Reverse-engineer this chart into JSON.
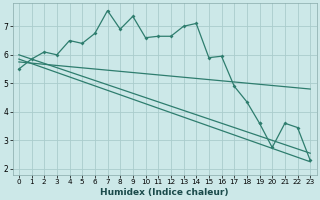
{
  "xlabel": "Humidex (Indice chaleur)",
  "ylabel": "",
  "bg_color": "#cce8e8",
  "grid_color": "#aacccc",
  "line_color": "#2e7d6e",
  "xlim": [
    -0.5,
    23.5
  ],
  "ylim": [
    1.8,
    7.8
  ],
  "yticks": [
    2,
    3,
    4,
    5,
    6,
    7
  ],
  "xticks": [
    0,
    1,
    2,
    3,
    4,
    5,
    6,
    7,
    8,
    9,
    10,
    11,
    12,
    13,
    14,
    15,
    16,
    17,
    18,
    19,
    20,
    21,
    22,
    23
  ],
  "line1_x": [
    0,
    1,
    2,
    3,
    4,
    5,
    6,
    7,
    8,
    9,
    10,
    11,
    12,
    13,
    14,
    15,
    16,
    17,
    18,
    19
  ],
  "line1_y": [
    5.5,
    5.85,
    6.1,
    6.0,
    6.5,
    6.4,
    6.75,
    7.55,
    6.9,
    7.35,
    6.6,
    6.65,
    6.65,
    7.0,
    7.1,
    5.9,
    5.95,
    4.9,
    4.35,
    3.6
  ],
  "line2_x": [
    0,
    23
  ],
  "line2_y": [
    6.0,
    2.55
  ],
  "line3_x": [
    0,
    23
  ],
  "line3_y": [
    5.85,
    2.25
  ],
  "line4_x": [
    0,
    23
  ],
  "line4_y": [
    5.75,
    4.8
  ],
  "line5_x": [
    19,
    20,
    21,
    22,
    23
  ],
  "line5_y": [
    3.6,
    2.75,
    3.6,
    3.45,
    2.3
  ]
}
